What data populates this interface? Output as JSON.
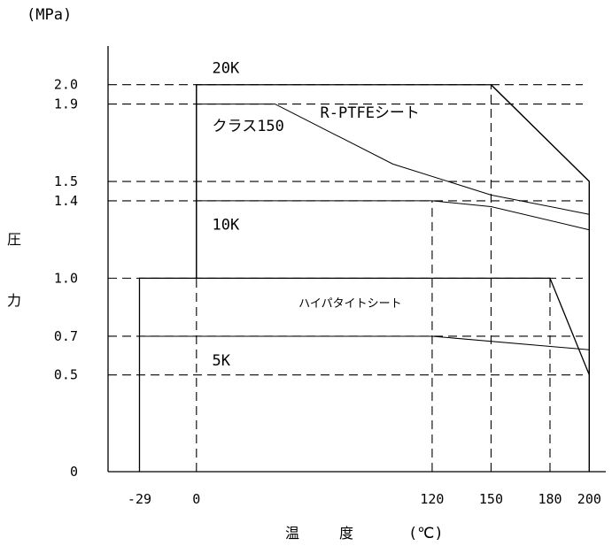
{
  "chart_data": {
    "type": "line",
    "title": "",
    "y_unit": "(MPa)",
    "ylabel_chars": [
      "圧",
      "力"
    ],
    "xlabel_chars": [
      "温",
      "度"
    ],
    "x_unit": "(℃)",
    "xlim": [
      -45,
      203
    ],
    "ylim": [
      0,
      2.2
    ],
    "x_ticks": [
      {
        "value": -29,
        "label": "-29"
      },
      {
        "value": 0,
        "label": "0"
      },
      {
        "value": 120,
        "label": "120"
      },
      {
        "value": 150,
        "label": "150"
      },
      {
        "value": 180,
        "label": "180"
      },
      {
        "value": 200,
        "label": "200"
      }
    ],
    "y_ticks": [
      {
        "value": 0,
        "label": "0"
      },
      {
        "value": 0.5,
        "label": "0.5"
      },
      {
        "value": 0.7,
        "label": "0.7"
      },
      {
        "value": 1.0,
        "label": "1.0"
      },
      {
        "value": 1.4,
        "label": "1.4"
      },
      {
        "value": 1.5,
        "label": "1.5"
      },
      {
        "value": 1.9,
        "label": "1.9"
      },
      {
        "value": 2.0,
        "label": "2.0"
      }
    ],
    "series": [
      {
        "name": "20K",
        "x": [
          0,
          0,
          150,
          200
        ],
        "y": [
          1.0,
          2.0,
          2.0,
          1.5
        ],
        "label_at": [
          8,
          2.06
        ]
      },
      {
        "name": "クラス150",
        "x": [
          0,
          40,
          100,
          150,
          200
        ],
        "y": [
          1.9,
          1.9,
          1.59,
          1.43,
          1.33
        ],
        "label_at": [
          8,
          1.76
        ]
      },
      {
        "name": "10K",
        "x": [
          0,
          120,
          150,
          200
        ],
        "y": [
          1.4,
          1.4,
          1.37,
          1.25
        ],
        "label_at": [
          8,
          1.25
        ]
      },
      {
        "name": "5K",
        "x": [
          -29,
          120,
          200
        ],
        "y": [
          0.7,
          0.7,
          0.63
        ],
        "label_at": [
          8,
          0.55
        ]
      }
    ],
    "material_limits": [
      {
        "name": "R-PTFEシート",
        "x": [
          150,
          200,
          200
        ],
        "y": [
          2.0,
          1.5,
          0
        ],
        "label_at": [
          63,
          1.83
        ]
      },
      {
        "name": "ハイパタイトシート",
        "x": [
          -29,
          -29,
          180,
          200
        ],
        "y": [
          0,
          1.0,
          1.0,
          0.5
        ],
        "label_at": [
          52,
          0.85
        ]
      }
    ],
    "verticals": [
      {
        "x": 0,
        "y_from": 1.0,
        "y_to": 2.0,
        "style": "solid"
      },
      {
        "x": 0,
        "y_from": 0,
        "y_to": 1.0,
        "style": "dashed"
      },
      {
        "x": 120,
        "y_from": 0,
        "y_to": 1.4,
        "style": "dashed"
      },
      {
        "x": 150,
        "y_from": 0,
        "y_to": 2.0,
        "style": "dashed"
      },
      {
        "x": 180,
        "y_from": 0,
        "y_to": 1.0,
        "style": "dashed"
      }
    ]
  }
}
